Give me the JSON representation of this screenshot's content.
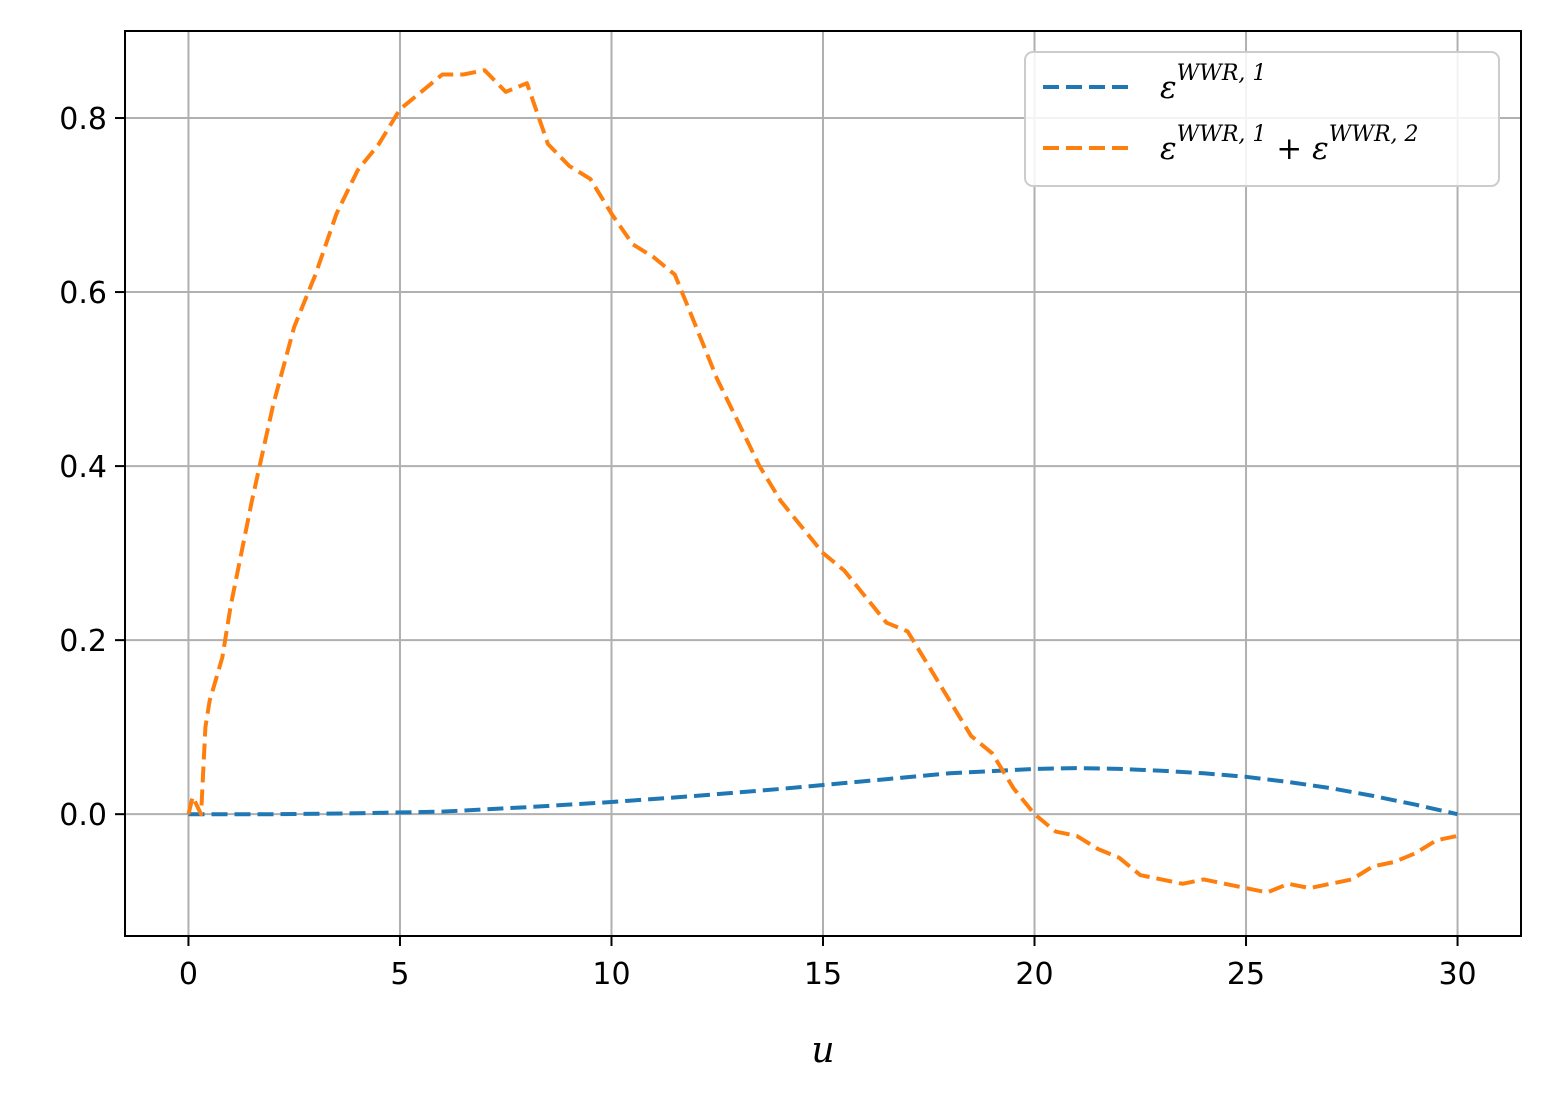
{
  "chart_data": {
    "type": "line",
    "title": "",
    "xlabel": "u",
    "ylabel": "",
    "xlim": [
      -1.5,
      31.5
    ],
    "ylim": [
      -0.14,
      0.9
    ],
    "grid": true,
    "legend_position": "top-right",
    "x_ticks": [
      0,
      5,
      10,
      15,
      20,
      25,
      30
    ],
    "y_ticks": [
      0.0,
      0.2,
      0.4,
      0.6,
      0.8
    ],
    "x_tick_labels": [
      "0",
      "5",
      "10",
      "15",
      "20",
      "25",
      "30"
    ],
    "y_tick_labels": [
      "0.0",
      "0.2",
      "0.4",
      "0.6",
      "0.8"
    ],
    "series": [
      {
        "legend": {
          "base": "ε",
          "sup": "WWR, 1"
        },
        "color": "#1f77b4",
        "style": "dashed",
        "x": [
          0,
          2,
          4,
          6,
          8,
          10,
          12,
          14,
          16,
          18,
          20,
          21,
          22,
          23,
          24,
          25,
          26,
          27,
          28,
          29,
          30
        ],
        "y": [
          0.0,
          0.0,
          0.001,
          0.003,
          0.008,
          0.014,
          0.021,
          0.029,
          0.038,
          0.047,
          0.052,
          0.053,
          0.052,
          0.05,
          0.047,
          0.043,
          0.037,
          0.03,
          0.021,
          0.011,
          0.0
        ]
      },
      {
        "legend": {
          "base1": "ε",
          "sup1": "WWR, 1",
          "plus": " + ",
          "base2": "ε",
          "sup2": "WWR, 2"
        },
        "color": "#ff7f0e",
        "style": "dashed",
        "x": [
          0,
          0.1,
          0.2,
          0.3,
          0.4,
          0.5,
          0.8,
          1.0,
          1.5,
          2.0,
          2.5,
          3.0,
          3.5,
          4.0,
          4.5,
          5.0,
          5.5,
          6.0,
          6.5,
          7.0,
          7.5,
          8.0,
          8.5,
          9.0,
          9.5,
          10.0,
          10.5,
          11.0,
          11.5,
          12.0,
          12.5,
          13.0,
          13.5,
          14.0,
          14.5,
          15.0,
          15.5,
          16.0,
          16.5,
          17.0,
          17.5,
          18.0,
          18.5,
          19.0,
          19.5,
          20.0,
          20.5,
          21.0,
          21.5,
          22.0,
          22.5,
          23.0,
          23.5,
          24.0,
          24.5,
          25.0,
          25.5,
          26.0,
          26.5,
          27.0,
          27.5,
          28.0,
          28.5,
          29.0,
          29.5,
          30.0
        ],
        "y": [
          0.0,
          0.02,
          0.01,
          0.0,
          0.1,
          0.13,
          0.18,
          0.24,
          0.36,
          0.47,
          0.56,
          0.62,
          0.69,
          0.74,
          0.77,
          0.81,
          0.83,
          0.85,
          0.85,
          0.855,
          0.83,
          0.84,
          0.77,
          0.745,
          0.73,
          0.69,
          0.655,
          0.64,
          0.62,
          0.56,
          0.5,
          0.45,
          0.4,
          0.36,
          0.33,
          0.3,
          0.28,
          0.25,
          0.22,
          0.21,
          0.17,
          0.13,
          0.09,
          0.07,
          0.03,
          0.0,
          -0.02,
          -0.025,
          -0.04,
          -0.05,
          -0.07,
          -0.075,
          -0.08,
          -0.075,
          -0.08,
          -0.085,
          -0.09,
          -0.08,
          -0.085,
          -0.08,
          -0.075,
          -0.06,
          -0.055,
          -0.045,
          -0.03,
          -0.025
        ]
      }
    ]
  }
}
